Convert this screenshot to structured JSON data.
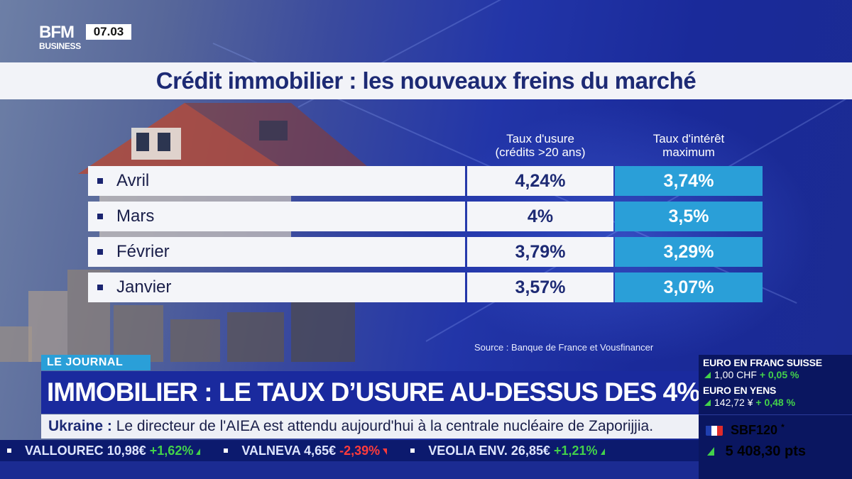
{
  "channel": {
    "logo_top": "BFM",
    "logo_bottom": "BUSINESS",
    "clock": "07.03"
  },
  "panel": {
    "title": "Crédit immobilier : les nouveaux freins du marché",
    "columns": [
      {
        "line1": "Taux d'usure",
        "line2": "(crédits >20 ans)"
      },
      {
        "line1": "Taux d'intérêt",
        "line2": "maximum"
      }
    ],
    "rows": [
      {
        "month": "Avril",
        "usure": "4,24%",
        "max": "3,74%"
      },
      {
        "month": "Mars",
        "usure": "4%",
        "max": "3,5%"
      },
      {
        "month": "Février",
        "usure": "3,79%",
        "max": "3,29%"
      },
      {
        "month": "Janvier",
        "usure": "3,57%",
        "max": "3,07%"
      }
    ],
    "source": "Source : Banque de France et Vousfinancer",
    "accent_color": "#2a9fd8"
  },
  "lower_third": {
    "tag": "LE JOURNAL",
    "headline": "IMMOBILIER : LE TAUX D’USURE AU-DESSUS DES 4%",
    "info_lead": "Ukraine :",
    "info_text": " Le directeur de l'AIEA est attendu aujourd'hui à la centrale nucléaire de Zaporijjia."
  },
  "ticker": [
    {
      "name": "VALLOUREC",
      "price": "10,98€",
      "change": "+1,62%",
      "dir": "up"
    },
    {
      "name": "VALNEVA",
      "price": "4,65€",
      "change": "-2,39%",
      "dir": "down"
    },
    {
      "name": "VEOLIA ENV.",
      "price": "26,85€",
      "change": "+1,21%",
      "dir": "up"
    }
  ],
  "market": {
    "fx1": {
      "title": "EURO EN FRANC SUISSE",
      "value": "1,00 CHF",
      "change": "+ 0,05 %"
    },
    "fx2": {
      "title": "EURO EN YENS",
      "value": "142,72 ¥",
      "change": "+ 0,48 %"
    },
    "index_name": "SBF120",
    "index_mark": "*",
    "index_value": "5 408,30 pts"
  }
}
